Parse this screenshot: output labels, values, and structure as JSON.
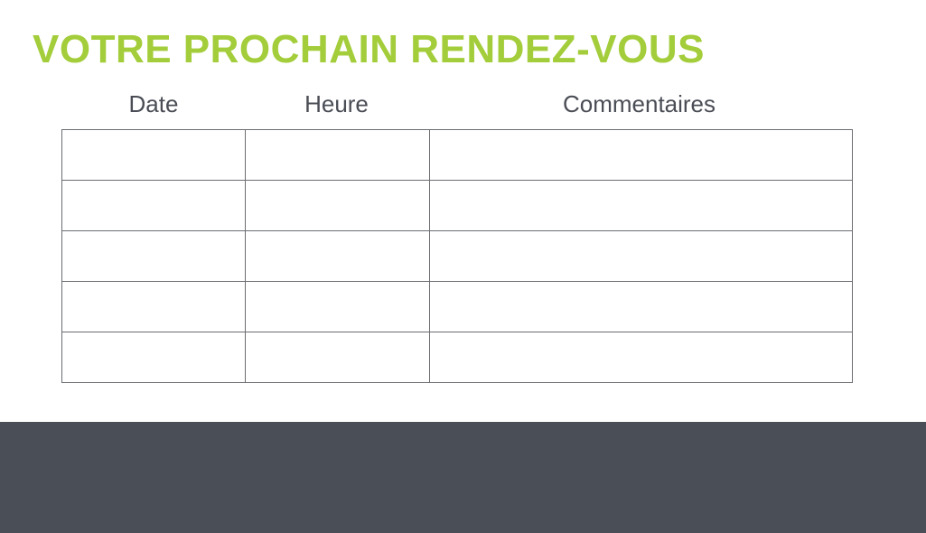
{
  "title": "VOTRE PROCHAIN RENDEZ-VOUS",
  "table": {
    "columns": [
      "Date",
      "Heure",
      "Commentaires"
    ],
    "rows": [
      [
        "",
        "",
        ""
      ],
      [
        "",
        "",
        ""
      ],
      [
        "",
        "",
        ""
      ],
      [
        "",
        "",
        ""
      ],
      [
        "",
        "",
        ""
      ]
    ]
  },
  "colors": {
    "accent": "#a3cd3a",
    "text": "#4a4d55",
    "footer": "#4a4e57"
  }
}
